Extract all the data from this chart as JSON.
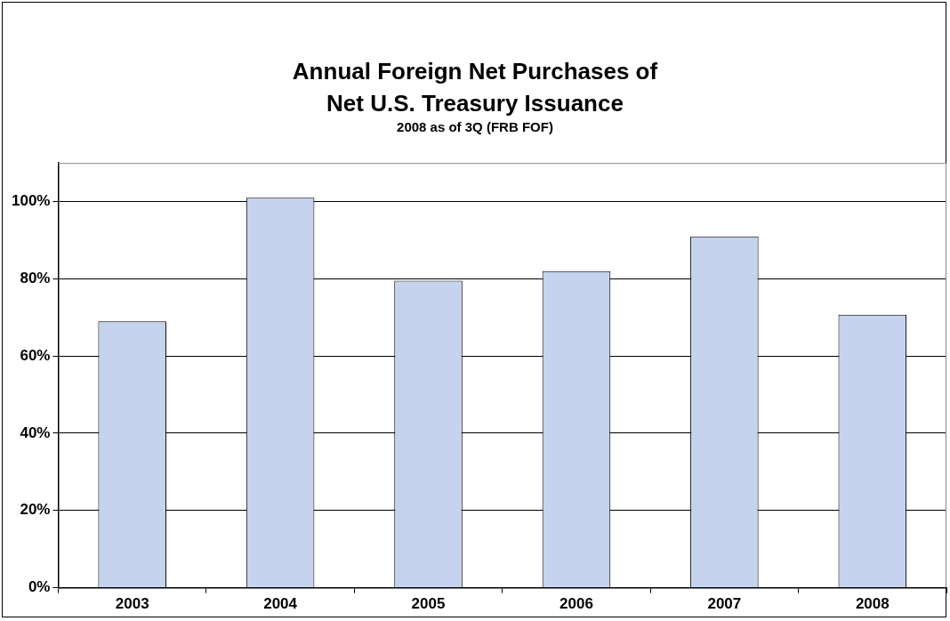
{
  "chart_data": {
    "type": "bar",
    "title": "Annual Foreign Net Purchases of Net U.S. Treasury Issuance",
    "subtitle": "2008 as of 3Q (FRB FOF)",
    "categories": [
      "2003",
      "2004",
      "2005",
      "2006",
      "2007",
      "2008"
    ],
    "values": [
      69,
      101,
      79.5,
      82,
      91,
      70.7
    ],
    "color": "#c5d3ee",
    "ylim": [
      0,
      110
    ],
    "yticks": [
      {
        "value": 0,
        "label": "0%"
      },
      {
        "value": 20,
        "label": "20%"
      },
      {
        "value": 40,
        "label": "40%"
      },
      {
        "value": 60,
        "label": "60%"
      },
      {
        "value": 80,
        "label": "80%"
      },
      {
        "value": 100,
        "label": "100%"
      }
    ],
    "grid": "y",
    "legend": false
  }
}
